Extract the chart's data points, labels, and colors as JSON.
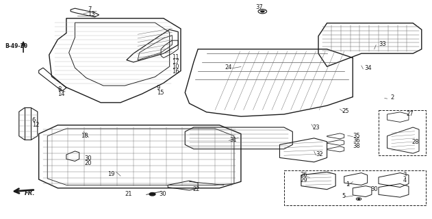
{
  "bg_color": "#ffffff",
  "fig_width": 6.31,
  "fig_height": 3.2,
  "dpi": 100,
  "gc": "#1a1a1a"
}
